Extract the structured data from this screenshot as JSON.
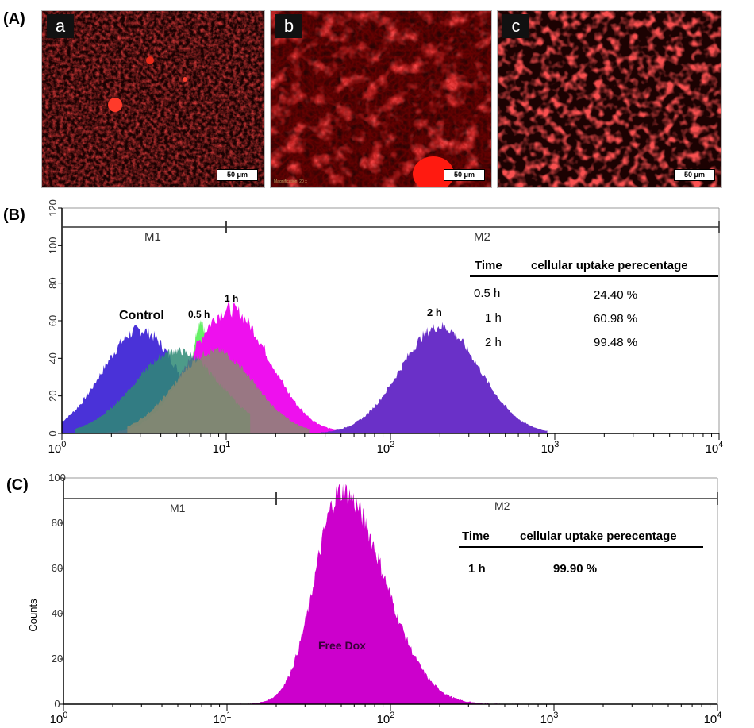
{
  "panel_labels": {
    "a": "(A)",
    "b": "(B)",
    "c": "(C)"
  },
  "micrographs": [
    {
      "letter": "a",
      "scale": "50 μm"
    },
    {
      "letter": "b",
      "scale": "50 μm",
      "magnification": "Magnification: 20 x"
    },
    {
      "letter": "c",
      "scale": "50 μm"
    }
  ],
  "colors": {
    "control": "#4a32d8",
    "half_hour": "#55ee55",
    "one_hour": "#ee10ee",
    "two_hour": "#6a30c8",
    "overlap": "#2e8a74",
    "free_dox": "#cc00cc"
  },
  "chart_data": [
    {
      "type": "area",
      "title": "",
      "xscale": "log",
      "xlim": [
        1,
        10000
      ],
      "ylim": [
        0,
        120
      ],
      "x_ticks": [
        "10^0",
        "10^1",
        "10^2",
        "10^3",
        "10^4"
      ],
      "y_ticks": [
        0,
        20,
        40,
        60,
        80,
        100,
        120
      ],
      "markers": [
        {
          "label": "M1",
          "range": [
            1,
            10
          ]
        },
        {
          "label": "M2",
          "range": [
            10,
            10000
          ]
        }
      ],
      "series": [
        {
          "name": "Control",
          "peak_x": 3,
          "peak_y": 55
        },
        {
          "name": "0.5 h",
          "peak_x": 7,
          "peak_y": 58
        },
        {
          "name": "1 h",
          "peak_x": 10.5,
          "peak_y": 66
        },
        {
          "name": "2 h",
          "peak_x": 200,
          "peak_y": 57
        }
      ],
      "table": {
        "headers": [
          "Time",
          "cellular uptake perecentage"
        ],
        "rows": [
          [
            "0.5 h",
            "24.40 %"
          ],
          [
            "1 h",
            "60.98 %"
          ],
          [
            "2 h",
            "99.48 %"
          ]
        ]
      }
    },
    {
      "type": "area",
      "title": "",
      "ylabel": "Counts",
      "xscale": "log",
      "xlim": [
        1,
        10000
      ],
      "ylim": [
        0,
        100
      ],
      "x_ticks": [
        "10^0",
        "10^1",
        "10^2",
        "10^3",
        "10^4"
      ],
      "y_ticks": [
        0,
        20,
        40,
        60,
        80,
        100
      ],
      "markers": [
        {
          "label": "M1",
          "range": [
            1,
            20
          ]
        },
        {
          "label": "M2",
          "range": [
            20,
            10000
          ]
        }
      ],
      "series": [
        {
          "name": "Free Dox",
          "peak_x": 50,
          "peak_y": 94
        }
      ],
      "table": {
        "headers": [
          "Time",
          "cellular uptake perecentage"
        ],
        "rows": [
          [
            "1 h",
            "99.90 %"
          ]
        ]
      }
    }
  ]
}
